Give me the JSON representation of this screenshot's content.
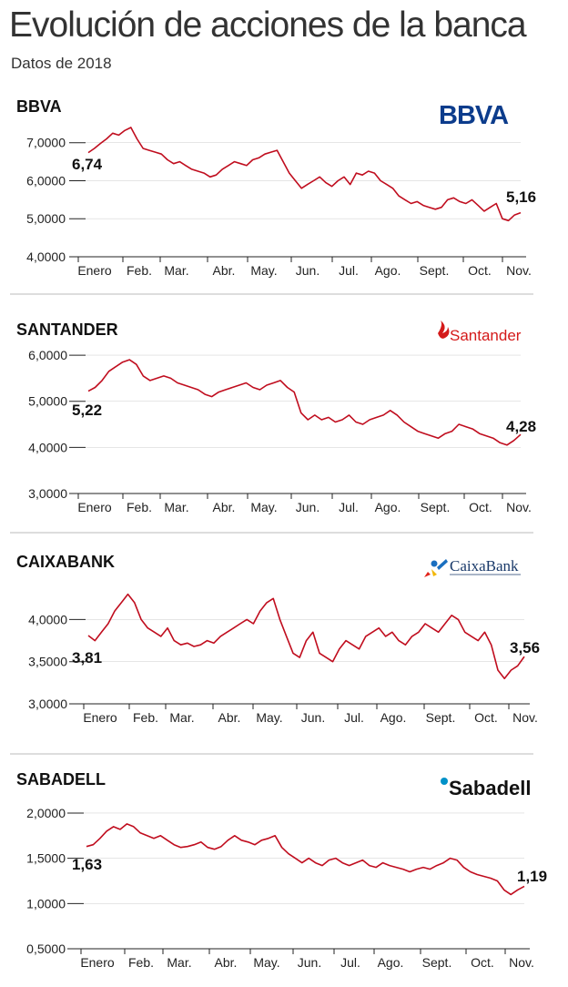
{
  "title": "Evolución de acciones de la banca",
  "subtitle": "Datos de 2018",
  "colors": {
    "line": "#c00d1e",
    "divider": "#bbbbbb",
    "axis": "#222222"
  },
  "chart_data": [
    {
      "type": "line",
      "title": "BBVA",
      "logo_text": "BBVA",
      "xlabel": "",
      "ylabel": "",
      "x_ticks": [
        "Enero",
        "Feb.",
        "Mar.",
        "Abr.",
        "May.",
        "Jun.",
        "Jul.",
        "Ago.",
        "Sept.",
        "Oct.",
        "Nov."
      ],
      "y_ticks": [
        "4,0000",
        "5,0000",
        "6,0000",
        "7,0000"
      ],
      "ylim": [
        4,
        7.4
      ],
      "start_label": "6,74",
      "end_label": "5,16",
      "grid": false,
      "series": [
        {
          "values": [
            6.74,
            6.85,
            6.98,
            7.1,
            7.25,
            7.2,
            7.32,
            7.4,
            7.1,
            6.85,
            6.8,
            6.75,
            6.7,
            6.55,
            6.45,
            6.5,
            6.4,
            6.3,
            6.25,
            6.2,
            6.1,
            6.15,
            6.3,
            6.4,
            6.5,
            6.45,
            6.4,
            6.55,
            6.6,
            6.7,
            6.75,
            6.8,
            6.5,
            6.2,
            6.0,
            5.8,
            5.9,
            6.0,
            6.1,
            5.95,
            5.85,
            6.0,
            6.1,
            5.9,
            6.2,
            6.15,
            6.25,
            6.2,
            6.0,
            5.9,
            5.8,
            5.6,
            5.5,
            5.4,
            5.45,
            5.35,
            5.3,
            5.25,
            5.3,
            5.5,
            5.55,
            5.45,
            5.4,
            5.5,
            5.35,
            5.2,
            5.3,
            5.4,
            5.0,
            4.95,
            5.1,
            5.16
          ]
        }
      ]
    },
    {
      "type": "line",
      "title": "SANTANDER",
      "logo_text": "Santander",
      "xlabel": "",
      "ylabel": "",
      "x_ticks": [
        "Enero",
        "Feb.",
        "Mar.",
        "Abr.",
        "May.",
        "Jun.",
        "Jul.",
        "Ago.",
        "Sept.",
        "Oct.",
        "Nov."
      ],
      "y_ticks": [
        "3,0000",
        "4,0000",
        "5,0000",
        "6,0000"
      ],
      "ylim": [
        3,
        6.1
      ],
      "start_label": "5,22",
      "end_label": "4,28",
      "grid": false,
      "series": [
        {
          "values": [
            5.22,
            5.3,
            5.45,
            5.65,
            5.75,
            5.85,
            5.9,
            5.8,
            5.55,
            5.45,
            5.5,
            5.55,
            5.5,
            5.4,
            5.35,
            5.3,
            5.25,
            5.15,
            5.1,
            5.2,
            5.25,
            5.3,
            5.35,
            5.4,
            5.3,
            5.25,
            5.35,
            5.4,
            5.45,
            5.3,
            5.2,
            4.75,
            4.6,
            4.7,
            4.6,
            4.65,
            4.55,
            4.6,
            4.7,
            4.55,
            4.5,
            4.6,
            4.65,
            4.7,
            4.8,
            4.7,
            4.55,
            4.45,
            4.35,
            4.3,
            4.25,
            4.2,
            4.3,
            4.35,
            4.5,
            4.45,
            4.4,
            4.3,
            4.25,
            4.2,
            4.1,
            4.05,
            4.15,
            4.28
          ]
        }
      ]
    },
    {
      "type": "line",
      "title": "CAIXABANK",
      "logo_text": "CaixaBank",
      "xlabel": "",
      "ylabel": "",
      "x_ticks": [
        "Enero",
        "Feb.",
        "Mar.",
        "Abr.",
        "May.",
        "Jun.",
        "Jul.",
        "Ago.",
        "Sept.",
        "Oct.",
        "Nov."
      ],
      "y_ticks": [
        "3,0000",
        "3,5000",
        "4,0000"
      ],
      "ylim": [
        3,
        4.35
      ],
      "start_label": "3,81",
      "end_label": "3,56",
      "grid": false,
      "series": [
        {
          "values": [
            3.81,
            3.75,
            3.85,
            3.95,
            4.1,
            4.2,
            4.3,
            4.2,
            4.0,
            3.9,
            3.85,
            3.8,
            3.9,
            3.75,
            3.7,
            3.72,
            3.68,
            3.7,
            3.75,
            3.72,
            3.8,
            3.85,
            3.9,
            3.95,
            4.0,
            3.95,
            4.1,
            4.2,
            4.25,
            4.0,
            3.8,
            3.6,
            3.55,
            3.75,
            3.85,
            3.6,
            3.55,
            3.5,
            3.65,
            3.75,
            3.7,
            3.65,
            3.8,
            3.85,
            3.9,
            3.8,
            3.85,
            3.75,
            3.7,
            3.8,
            3.85,
            3.95,
            3.9,
            3.85,
            3.95,
            4.05,
            4.0,
            3.85,
            3.8,
            3.75,
            3.85,
            3.7,
            3.4,
            3.3,
            3.4,
            3.45,
            3.56
          ]
        }
      ]
    },
    {
      "type": "line",
      "title": "SABADELL",
      "logo_text": "Sabadell",
      "xlabel": "",
      "ylabel": "",
      "x_ticks": [
        "Enero",
        "Feb.",
        "Mar.",
        "Abr.",
        "May.",
        "Jun.",
        "Jul.",
        "Ago.",
        "Sept.",
        "Oct.",
        "Nov."
      ],
      "y_ticks": [
        "0,5000",
        "1,0000",
        "1,5000",
        "2,0000"
      ],
      "ylim": [
        0.5,
        2.05
      ],
      "start_label": "1,63",
      "end_label": "1,19",
      "grid": false,
      "series": [
        {
          "values": [
            1.63,
            1.65,
            1.72,
            1.8,
            1.85,
            1.82,
            1.88,
            1.85,
            1.78,
            1.75,
            1.72,
            1.75,
            1.7,
            1.65,
            1.62,
            1.63,
            1.65,
            1.68,
            1.62,
            1.6,
            1.63,
            1.7,
            1.75,
            1.7,
            1.68,
            1.65,
            1.7,
            1.72,
            1.75,
            1.62,
            1.55,
            1.5,
            1.45,
            1.5,
            1.45,
            1.42,
            1.48,
            1.5,
            1.45,
            1.42,
            1.45,
            1.48,
            1.42,
            1.4,
            1.45,
            1.42,
            1.4,
            1.38,
            1.35,
            1.38,
            1.4,
            1.38,
            1.42,
            1.45,
            1.5,
            1.48,
            1.4,
            1.35,
            1.32,
            1.3,
            1.28,
            1.25,
            1.15,
            1.1,
            1.15,
            1.19
          ]
        }
      ]
    }
  ]
}
